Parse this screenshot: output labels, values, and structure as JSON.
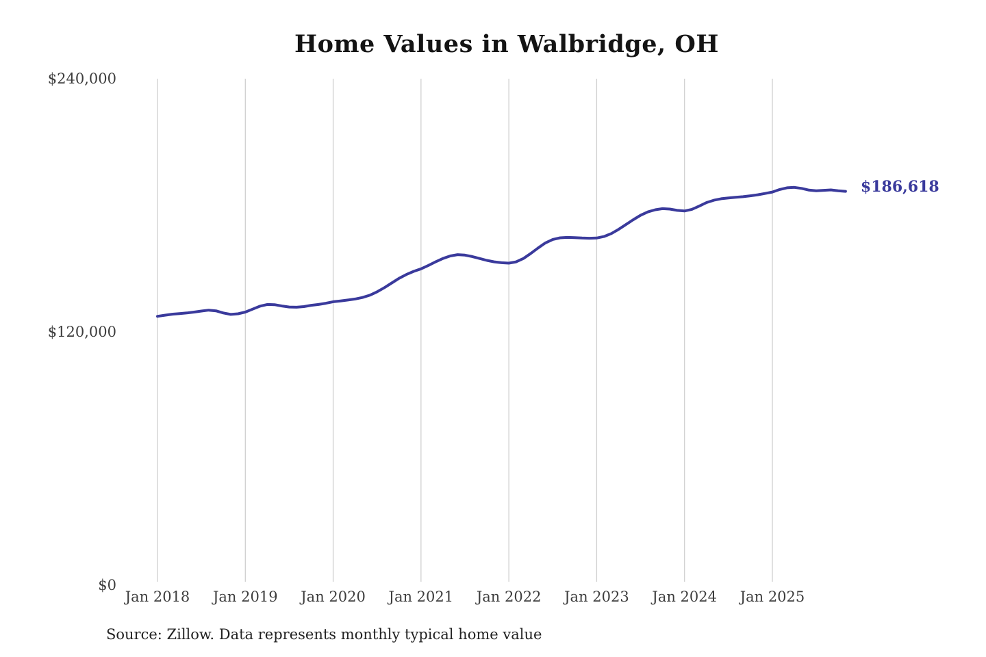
{
  "title": "Home Values in Walbridge, OH",
  "source_note": "Source: Zillow. Data represents monthly typical home value",
  "colors": {
    "line": "#3a3a9c",
    "annotation": "#3a3a9c",
    "grid": "#cfcfcf",
    "axis_label": "#3d3d3d",
    "title": "#141414",
    "source": "#222222",
    "background": "#ffffff"
  },
  "chart_data": {
    "type": "line",
    "title": "Home Values in Walbridge, OH",
    "xlabel": "",
    "ylabel": "",
    "legend": "none",
    "grid": "vertical gridlines only",
    "ylim": [
      0,
      240000
    ],
    "y_ticks": [
      {
        "label": "$0",
        "value": 0
      },
      {
        "label": "$120,000",
        "value": 120000
      },
      {
        "label": "$240,000",
        "value": 240000
      }
    ],
    "x_ticks": [
      "Jan 2018",
      "Jan 2019",
      "Jan 2020",
      "Jan 2021",
      "Jan 2022",
      "Jan 2023",
      "Jan 2024",
      "Jan 2025"
    ],
    "final_value_label": "$186,618",
    "series": [
      {
        "name": "Monthly typical home value",
        "start": "2018-01",
        "frequency": "monthly",
        "values": [
          127400,
          127900,
          128400,
          128700,
          129000,
          129400,
          129900,
          130300,
          130000,
          129000,
          128300,
          128600,
          129400,
          130800,
          132200,
          133000,
          132900,
          132300,
          131800,
          131700,
          132000,
          132600,
          133000,
          133600,
          134300,
          134700,
          135100,
          135600,
          136300,
          137400,
          139000,
          141000,
          143200,
          145400,
          147200,
          148700,
          149900,
          151500,
          153200,
          154800,
          156000,
          156600,
          156400,
          155700,
          154800,
          153900,
          153200,
          152800,
          152600,
          153200,
          154800,
          157200,
          159800,
          162200,
          163800,
          164600,
          164800,
          164700,
          164500,
          164400,
          164500,
          165200,
          166600,
          168600,
          170900,
          173200,
          175300,
          176900,
          177900,
          178400,
          178200,
          177600,
          177300,
          178100,
          179600,
          181300,
          182400,
          183100,
          183500,
          183800,
          184100,
          184500,
          185000,
          185600,
          186300,
          187500,
          188300,
          188500,
          188000,
          187200,
          186900,
          187100,
          187300,
          186900,
          186618
        ]
      }
    ]
  }
}
